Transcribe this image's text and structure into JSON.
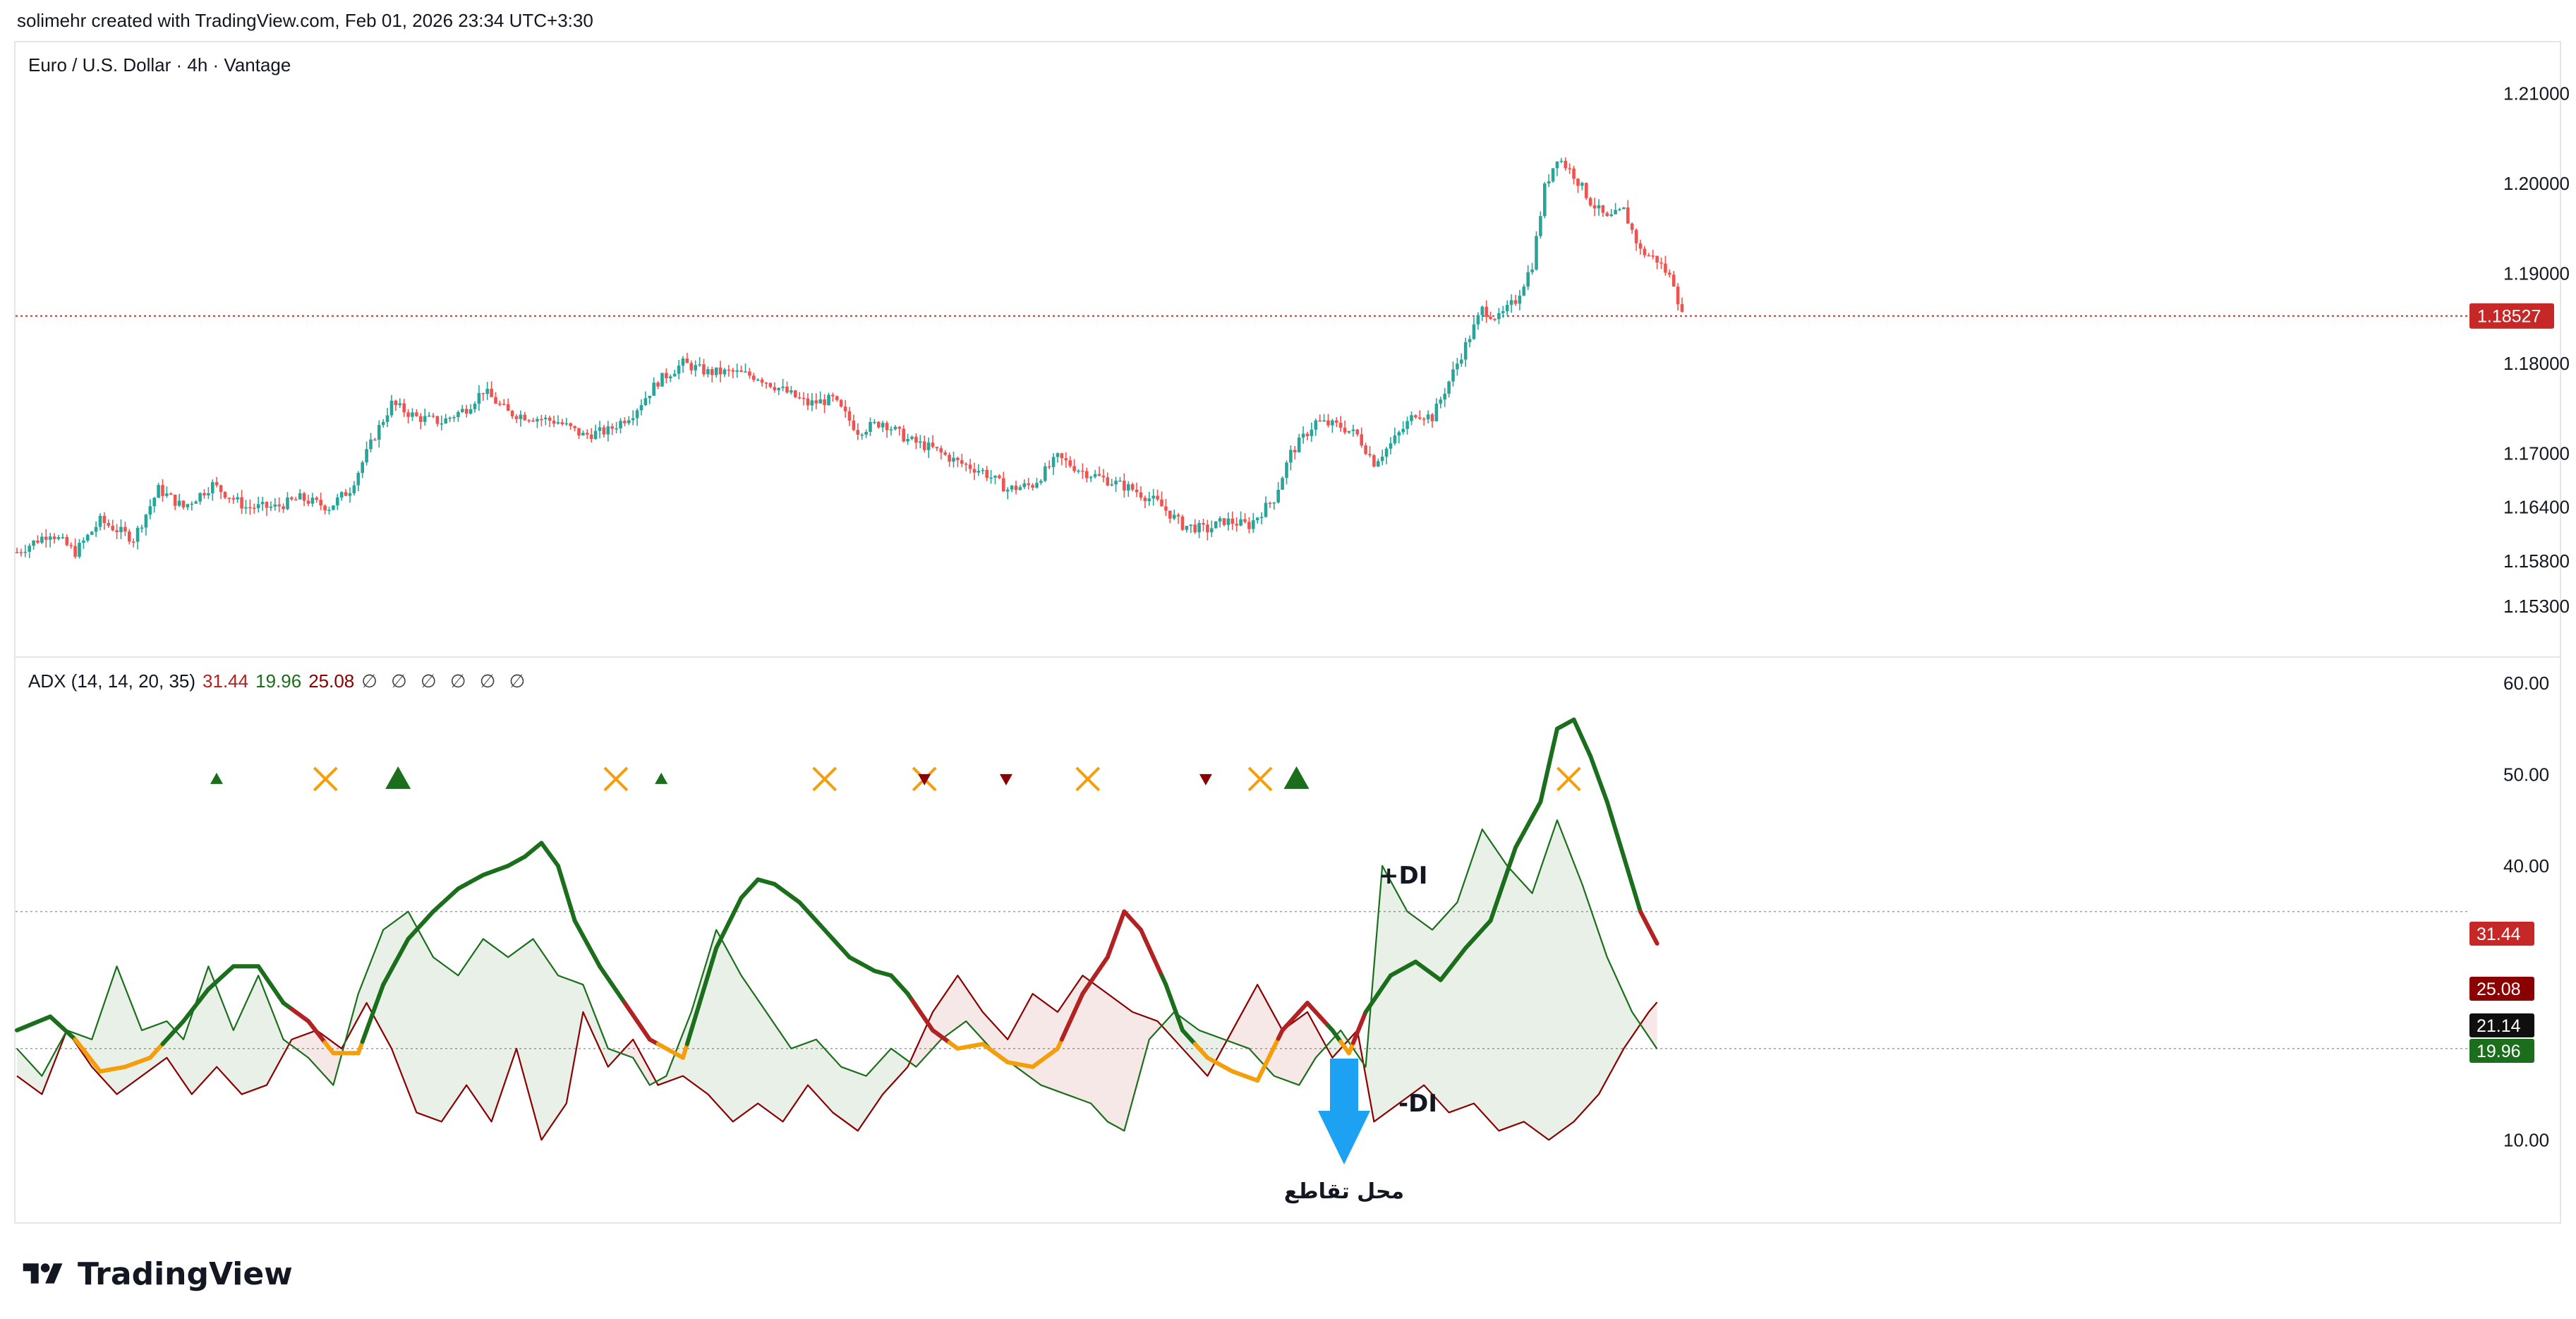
{
  "header": {
    "credit": "solimehr created with TradingView.com, Feb 01, 2026 23:34 UTC+3:30"
  },
  "price_pane": {
    "symbol_title": "Euro / U.S. Dollar · 4h · Vantage",
    "current_price_label": "1.18527",
    "current_price": 1.18527
  },
  "adx_pane": {
    "legend_name": "ADX (14, 14, 20, 35)",
    "adx_value": "31.44",
    "plus_di_value": "19.96",
    "minus_di_value": "25.08",
    "empty_slots": "∅ ∅ ∅ ∅ ∅ ∅",
    "badges": {
      "adx": "31.44",
      "minus_di": "25.08",
      "threshold": "21.14",
      "plus_di": "19.96"
    },
    "annotations": {
      "plus_di": "+DI",
      "minus_di": "-DI",
      "crossover": "محل تقاطع"
    }
  },
  "colors": {
    "bull": "#26a69a",
    "bear": "#ef5350",
    "plus_di": "#1b6e1b",
    "minus_di": "#8b0000",
    "adx_bull": "#1b6e1b",
    "adx_bear": "#b22222",
    "adx_flat": "#f59e0b",
    "price_line": "#d32f2f",
    "arrow": "#1da1f2"
  },
  "brand": {
    "name": "TradingView"
  },
  "chart_data": [
    {
      "type": "candlestick",
      "title": "Euro / U.S. Dollar · 4h · Vantage",
      "y_ticks": [
        "1.21000",
        "1.20000",
        "1.19000",
        "1.18000",
        "1.17000",
        "1.16400",
        "1.15800",
        "1.15300"
      ],
      "ylim": [
        1.1515,
        1.2135
      ],
      "close_path": [
        [
          0,
          1.159
        ],
        [
          8,
          1.1612
        ],
        [
          14,
          1.159
        ],
        [
          20,
          1.1625
        ],
        [
          28,
          1.1605
        ],
        [
          34,
          1.166
        ],
        [
          40,
          1.164
        ],
        [
          47,
          1.1665
        ],
        [
          55,
          1.164
        ],
        [
          62,
          1.164
        ],
        [
          68,
          1.165
        ],
        [
          75,
          1.164
        ],
        [
          80,
          1.166
        ],
        [
          86,
          1.172
        ],
        [
          90,
          1.1755
        ],
        [
          96,
          1.174
        ],
        [
          102,
          1.1735
        ],
        [
          108,
          1.175
        ],
        [
          112,
          1.177
        ],
        [
          118,
          1.1745
        ],
        [
          124,
          1.174
        ],
        [
          130,
          1.1735
        ],
        [
          136,
          1.172
        ],
        [
          142,
          1.1725
        ],
        [
          148,
          1.1745
        ],
        [
          154,
          1.178
        ],
        [
          160,
          1.18
        ],
        [
          166,
          1.179
        ],
        [
          172,
          1.179
        ],
        [
          178,
          1.1785
        ],
        [
          184,
          1.177
        ],
        [
          190,
          1.1755
        ],
        [
          196,
          1.176
        ],
        [
          202,
          1.1725
        ],
        [
          208,
          1.1735
        ],
        [
          214,
          1.1715
        ],
        [
          220,
          1.1705
        ],
        [
          226,
          1.169
        ],
        [
          232,
          1.168
        ],
        [
          238,
          1.166
        ],
        [
          244,
          1.1665
        ],
        [
          250,
          1.1695
        ],
        [
          256,
          1.168
        ],
        [
          262,
          1.167
        ],
        [
          268,
          1.166
        ],
        [
          274,
          1.1645
        ],
        [
          280,
          1.162
        ],
        [
          286,
          1.1615
        ],
        [
          290,
          1.1625
        ],
        [
          296,
          1.162
        ],
        [
          302,
          1.165
        ],
        [
          306,
          1.17
        ],
        [
          312,
          1.1735
        ],
        [
          318,
          1.173
        ],
        [
          322,
          1.172
        ],
        [
          326,
          1.169
        ],
        [
          330,
          1.171
        ],
        [
          336,
          1.1745
        ],
        [
          340,
          1.174
        ],
        [
          344,
          1.178
        ],
        [
          348,
          1.182
        ],
        [
          352,
          1.186
        ],
        [
          356,
          1.185
        ],
        [
          360,
          1.187
        ],
        [
          364,
          1.191
        ],
        [
          367,
          1.1995
        ],
        [
          370,
          1.203
        ],
        [
          374,
          1.201
        ],
        [
          378,
          1.198
        ],
        [
          382,
          1.196
        ],
        [
          386,
          1.197
        ],
        [
          390,
          1.1925
        ],
        [
          394,
          1.1915
        ],
        [
          398,
          1.189
        ],
        [
          400,
          1.1853
        ]
      ]
    },
    {
      "type": "line",
      "title": "ADX (14, 14, 20, 35)",
      "y_ticks": [
        "60.00",
        "50.00",
        "40.00",
        "10.00"
      ],
      "ylim": [
        5,
        61
      ],
      "levels": [
        35,
        20
      ],
      "series": [
        {
          "name": "ADX",
          "last": 31.44,
          "points": [
            [
              0,
              22
            ],
            [
              8,
              23.5
            ],
            [
              14,
              21
            ],
            [
              20,
              17.5
            ],
            [
              26,
              18
            ],
            [
              32,
              19
            ],
            [
              40,
              23
            ],
            [
              46,
              26.5
            ],
            [
              52,
              29
            ],
            [
              58,
              29
            ],
            [
              64,
              25
            ],
            [
              70,
              23
            ],
            [
              76,
              19.5
            ],
            [
              82,
              19.5
            ],
            [
              88,
              27
            ],
            [
              94,
              32
            ],
            [
              100,
              35
            ],
            [
              106,
              37.5
            ],
            [
              112,
              39
            ],
            [
              118,
              40
            ],
            [
              122,
              41
            ],
            [
              126,
              42.5
            ],
            [
              130,
              40
            ],
            [
              134,
              34
            ],
            [
              140,
              29
            ],
            [
              146,
              25
            ],
            [
              152,
              21
            ],
            [
              156,
              20
            ],
            [
              160,
              19
            ],
            [
              164,
              25
            ],
            [
              168,
              31
            ],
            [
              174,
              36.5
            ],
            [
              178,
              38.5
            ],
            [
              182,
              38
            ],
            [
              188,
              36
            ],
            [
              194,
              33
            ],
            [
              200,
              30
            ],
            [
              206,
              28.5
            ],
            [
              210,
              28
            ],
            [
              214,
              26
            ],
            [
              220,
              22
            ],
            [
              226,
              20
            ],
            [
              232,
              20.5
            ],
            [
              238,
              18.5
            ],
            [
              244,
              18
            ],
            [
              250,
              20
            ],
            [
              256,
              26
            ],
            [
              262,
              30
            ],
            [
              266,
              35
            ],
            [
              270,
              33
            ],
            [
              276,
              27
            ],
            [
              280,
              22
            ],
            [
              286,
              19
            ],
            [
              292,
              17.5
            ],
            [
              298,
              16.5
            ],
            [
              304,
              22
            ],
            [
              310,
              25
            ],
            [
              316,
              22
            ],
            [
              320,
              19.5
            ],
            [
              324,
              24
            ],
            [
              330,
              28
            ],
            [
              336,
              29.5
            ],
            [
              342,
              27.5
            ],
            [
              348,
              31
            ],
            [
              354,
              34
            ],
            [
              360,
              42
            ],
            [
              366,
              47
            ],
            [
              370,
              55
            ],
            [
              374,
              56
            ],
            [
              378,
              52
            ],
            [
              382,
              47
            ],
            [
              386,
              41
            ],
            [
              390,
              35
            ],
            [
              394,
              31.5
            ]
          ]
        },
        {
          "name": "+DI",
          "last": 19.96,
          "points": [
            [
              0,
              20
            ],
            [
              6,
              17
            ],
            [
              12,
              22
            ],
            [
              18,
              21
            ],
            [
              24,
              29
            ],
            [
              30,
              22
            ],
            [
              36,
              23
            ],
            [
              40,
              21
            ],
            [
              46,
              29
            ],
            [
              52,
              22
            ],
            [
              58,
              28
            ],
            [
              64,
              21
            ],
            [
              70,
              19
            ],
            [
              76,
              16
            ],
            [
              82,
              26
            ],
            [
              88,
              33
            ],
            [
              94,
              35
            ],
            [
              100,
              30
            ],
            [
              106,
              28
            ],
            [
              112,
              32
            ],
            [
              118,
              30
            ],
            [
              124,
              32
            ],
            [
              130,
              28
            ],
            [
              136,
              27
            ],
            [
              142,
              20
            ],
            [
              148,
              19
            ],
            [
              152,
              16
            ],
            [
              156,
              17
            ],
            [
              162,
              24
            ],
            [
              168,
              33
            ],
            [
              174,
              28
            ],
            [
              180,
              24
            ],
            [
              186,
              20
            ],
            [
              192,
              21
            ],
            [
              198,
              18
            ],
            [
              204,
              17
            ],
            [
              210,
              20
            ],
            [
              216,
              18
            ],
            [
              222,
              21
            ],
            [
              228,
              23
            ],
            [
              234,
              20
            ],
            [
              240,
              18
            ],
            [
              246,
              16
            ],
            [
              252,
              15
            ],
            [
              258,
              14
            ],
            [
              262,
              12
            ],
            [
              266,
              11
            ],
            [
              272,
              21
            ],
            [
              278,
              24
            ],
            [
              284,
              22
            ],
            [
              290,
              21
            ],
            [
              296,
              20
            ],
            [
              302,
              17
            ],
            [
              308,
              16
            ],
            [
              312,
              19
            ],
            [
              318,
              22
            ],
            [
              324,
              18
            ],
            [
              328,
              40
            ],
            [
              334,
              35
            ],
            [
              340,
              33
            ],
            [
              346,
              36
            ],
            [
              352,
              44
            ],
            [
              358,
              40
            ],
            [
              364,
              37
            ],
            [
              370,
              45
            ],
            [
              376,
              38
            ],
            [
              382,
              30
            ],
            [
              388,
              24
            ],
            [
              394,
              19.96
            ]
          ]
        },
        {
          "name": "-DI",
          "last": 25.08,
          "points": [
            [
              0,
              17
            ],
            [
              6,
              15
            ],
            [
              12,
              22
            ],
            [
              18,
              18
            ],
            [
              24,
              15
            ],
            [
              30,
              17
            ],
            [
              36,
              19
            ],
            [
              42,
              15
            ],
            [
              48,
              18
            ],
            [
              54,
              15
            ],
            [
              60,
              16
            ],
            [
              66,
              21
            ],
            [
              72,
              22
            ],
            [
              78,
              20
            ],
            [
              84,
              25
            ],
            [
              90,
              20
            ],
            [
              96,
              13
            ],
            [
              102,
              12
            ],
            [
              108,
              16
            ],
            [
              114,
              12
            ],
            [
              120,
              20
            ],
            [
              126,
              10
            ],
            [
              132,
              14
            ],
            [
              136,
              24
            ],
            [
              142,
              18
            ],
            [
              148,
              21
            ],
            [
              154,
              16
            ],
            [
              160,
              17
            ],
            [
              166,
              15
            ],
            [
              172,
              12
            ],
            [
              178,
              14
            ],
            [
              184,
              12
            ],
            [
              190,
              16
            ],
            [
              196,
              13
            ],
            [
              202,
              11
            ],
            [
              208,
              15
            ],
            [
              214,
              18
            ],
            [
              220,
              24
            ],
            [
              226,
              28
            ],
            [
              232,
              24
            ],
            [
              238,
              21
            ],
            [
              244,
              26
            ],
            [
              250,
              24
            ],
            [
              256,
              28
            ],
            [
              262,
              26
            ],
            [
              268,
              24
            ],
            [
              274,
              23
            ],
            [
              280,
              20
            ],
            [
              286,
              17
            ],
            [
              292,
              22
            ],
            [
              298,
              27
            ],
            [
              304,
              22
            ],
            [
              310,
              24
            ],
            [
              316,
              19
            ],
            [
              322,
              22
            ],
            [
              326,
              12
            ],
            [
              332,
              14
            ],
            [
              338,
              16
            ],
            [
              344,
              13
            ],
            [
              350,
              14
            ],
            [
              356,
              11
            ],
            [
              362,
              12
            ],
            [
              368,
              10
            ],
            [
              374,
              12
            ],
            [
              380,
              15
            ],
            [
              386,
              20
            ],
            [
              392,
              24
            ],
            [
              394,
              25.08
            ]
          ]
        }
      ],
      "threshold_marker": 21.14
    }
  ]
}
